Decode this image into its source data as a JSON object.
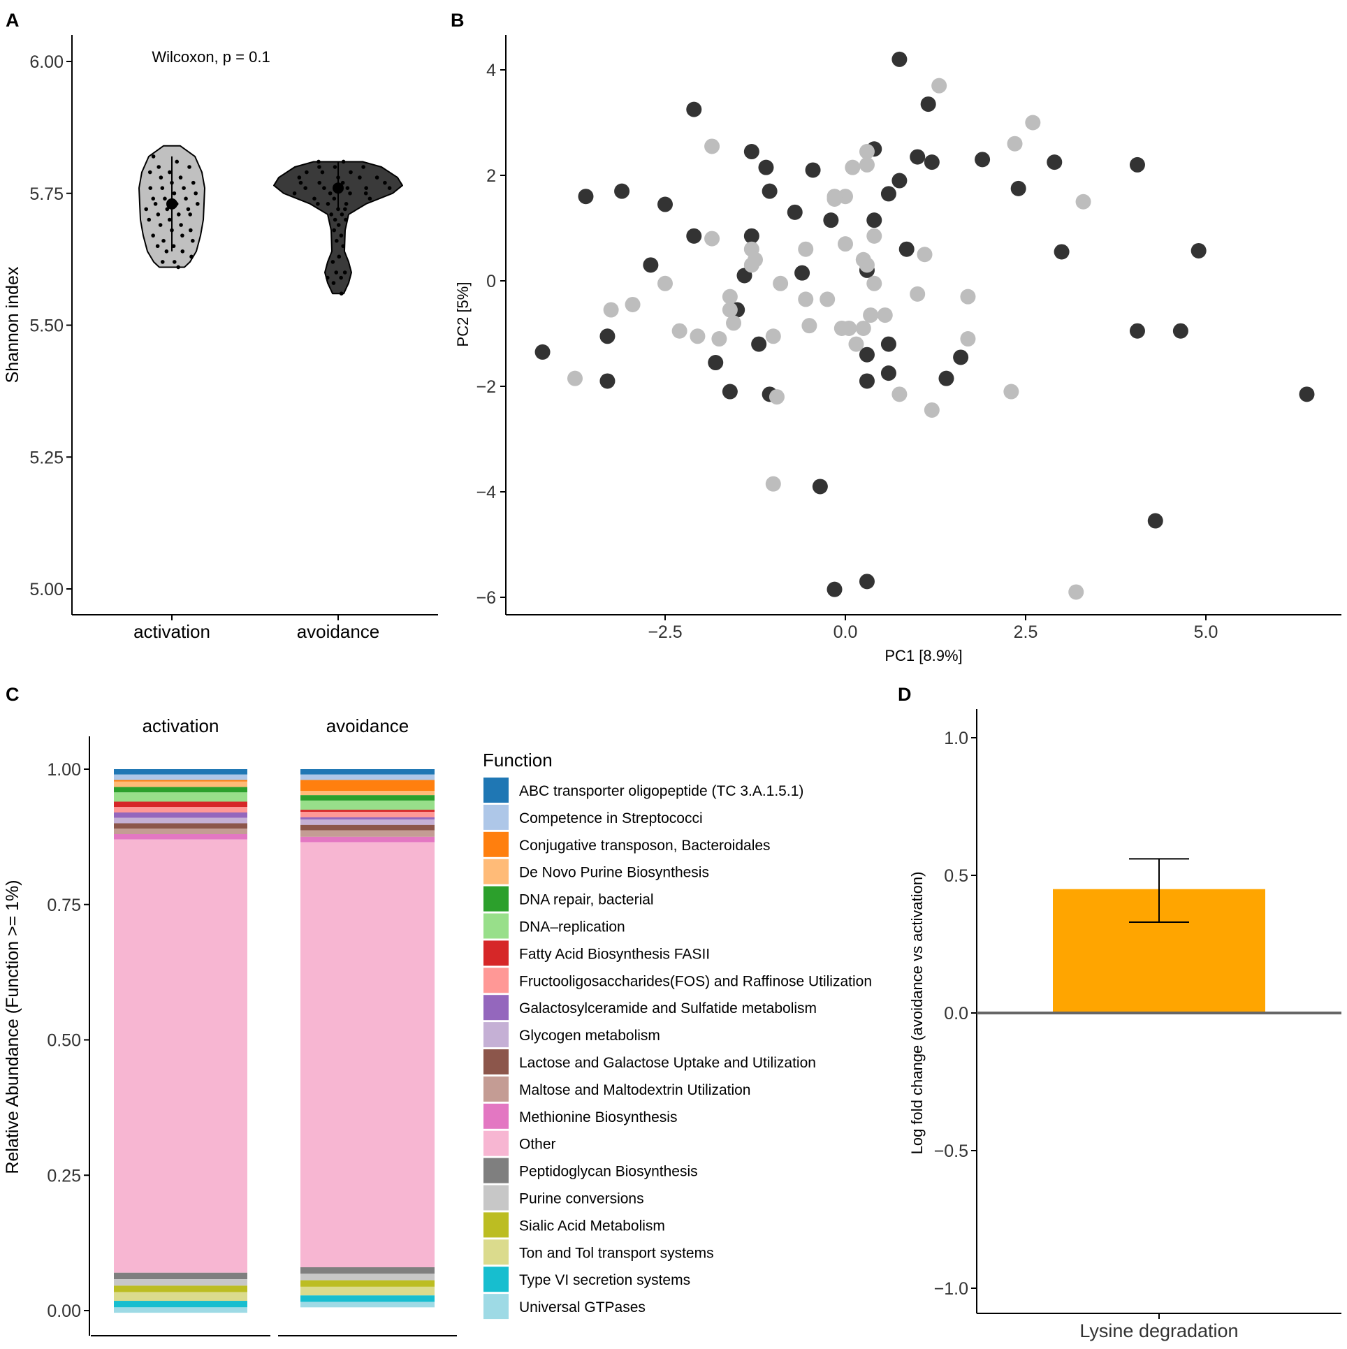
{
  "chart_data": [
    {
      "panel": "A",
      "type": "violin",
      "annotation": "Wilcoxon, p = 0.1",
      "ylabel": "Shannon index",
      "xlabel": "",
      "ylim": [
        4.95,
        6.05
      ],
      "yticks": [
        5.0,
        5.25,
        5.5,
        5.75,
        6.0
      ],
      "ytick_labels": [
        "5.00",
        "5.25",
        "5.50",
        "5.75",
        "6.00"
      ],
      "categories": [
        "activation",
        "avoidance"
      ],
      "groups": [
        {
          "name": "activation",
          "color": "#c0c0c0",
          "mean": 5.73,
          "sd_low": 5.64,
          "sd_high": 5.82,
          "range": [
            5.61,
            5.84
          ],
          "points": [
            5.82,
            5.81,
            5.8,
            5.8,
            5.79,
            5.79,
            5.78,
            5.78,
            5.77,
            5.77,
            5.76,
            5.76,
            5.76,
            5.75,
            5.75,
            5.74,
            5.74,
            5.74,
            5.73,
            5.73,
            5.73,
            5.72,
            5.72,
            5.72,
            5.71,
            5.71,
            5.71,
            5.7,
            5.7,
            5.69,
            5.69,
            5.68,
            5.68,
            5.67,
            5.67,
            5.66,
            5.66,
            5.65,
            5.65,
            5.64,
            5.64,
            5.63,
            5.62,
            5.62,
            5.61
          ]
        },
        {
          "name": "avoidance",
          "color": "#3a3a3a",
          "mean": 5.76,
          "sd_low": 5.72,
          "sd_high": 5.81,
          "range": [
            5.56,
            5.81
          ],
          "points": [
            5.81,
            5.81,
            5.8,
            5.8,
            5.8,
            5.79,
            5.79,
            5.79,
            5.78,
            5.78,
            5.78,
            5.78,
            5.77,
            5.77,
            5.77,
            5.77,
            5.76,
            5.76,
            5.76,
            5.76,
            5.76,
            5.75,
            5.75,
            5.75,
            5.75,
            5.74,
            5.74,
            5.74,
            5.73,
            5.73,
            5.73,
            5.72,
            5.72,
            5.71,
            5.71,
            5.7,
            5.7,
            5.69,
            5.68,
            5.67,
            5.66,
            5.65,
            5.63,
            5.62,
            5.6,
            5.6,
            5.59,
            5.59,
            5.58,
            5.56
          ]
        }
      ]
    },
    {
      "panel": "B",
      "type": "scatter",
      "xlabel": "PC1   [8.9%]",
      "ylabel": "PC2   [5%]",
      "xlim": [
        -4.8,
        6.8
      ],
      "ylim": [
        -6.4,
        4.7
      ],
      "xticks": [
        -2.5,
        0.0,
        2.5,
        5.0
      ],
      "xtick_labels": [
        "−2.5",
        "0.0",
        "2.5",
        "5.0"
      ],
      "yticks": [
        -6,
        -4,
        -2,
        0,
        2,
        4
      ],
      "ytick_labels": [
        "−6",
        "−4",
        "−2",
        "0",
        "2",
        "4"
      ],
      "series": [
        {
          "name": "dark",
          "color": "#333333",
          "points": [
            [
              0.75,
              4.2
            ],
            [
              -2.1,
              3.25
            ],
            [
              1.15,
              3.35
            ],
            [
              0.4,
              2.5
            ],
            [
              -1.3,
              2.45
            ],
            [
              1.0,
              2.35
            ],
            [
              1.2,
              2.25
            ],
            [
              1.9,
              2.3
            ],
            [
              2.9,
              2.25
            ],
            [
              4.05,
              2.2
            ],
            [
              -1.1,
              2.15
            ],
            [
              -0.45,
              2.1
            ],
            [
              0.75,
              1.9
            ],
            [
              -1.05,
              1.7
            ],
            [
              -3.1,
              1.7
            ],
            [
              0.6,
              1.65
            ],
            [
              2.4,
              1.75
            ],
            [
              -3.6,
              1.6
            ],
            [
              -2.5,
              1.45
            ],
            [
              -0.7,
              1.3
            ],
            [
              -0.2,
              1.15
            ],
            [
              0.4,
              1.15
            ],
            [
              -2.1,
              0.85
            ],
            [
              -1.3,
              0.85
            ],
            [
              0.85,
              0.6
            ],
            [
              3.0,
              0.55
            ],
            [
              4.9,
              0.57
            ],
            [
              -2.7,
              0.3
            ],
            [
              -1.4,
              0.1
            ],
            [
              -0.6,
              0.15
            ],
            [
              0.3,
              0.2
            ],
            [
              -1.5,
              -0.55
            ],
            [
              4.05,
              -0.95
            ],
            [
              4.65,
              -0.95
            ],
            [
              -3.3,
              -1.05
            ],
            [
              -1.2,
              -1.2
            ],
            [
              0.6,
              -1.2
            ],
            [
              0.3,
              -1.4
            ],
            [
              1.6,
              -1.45
            ],
            [
              -4.2,
              -1.35
            ],
            [
              -1.8,
              -1.55
            ],
            [
              0.6,
              -1.75
            ],
            [
              1.4,
              -1.85
            ],
            [
              -3.3,
              -1.9
            ],
            [
              0.3,
              -1.9
            ],
            [
              -1.6,
              -2.1
            ],
            [
              -1.05,
              -2.15
            ],
            [
              6.4,
              -2.15
            ],
            [
              -0.35,
              -3.9
            ],
            [
              4.3,
              -4.55
            ],
            [
              -0.15,
              -5.85
            ],
            [
              0.3,
              -5.7
            ]
          ]
        },
        {
          "name": "light",
          "color": "#bdbdbd",
          "points": [
            [
              1.3,
              3.7
            ],
            [
              2.6,
              3.0
            ],
            [
              2.35,
              2.6
            ],
            [
              -1.85,
              2.55
            ],
            [
              0.3,
              2.45
            ],
            [
              0.3,
              2.2
            ],
            [
              0.1,
              2.15
            ],
            [
              -0.15,
              1.6
            ],
            [
              0.0,
              1.6
            ],
            [
              -0.15,
              1.55
            ],
            [
              3.3,
              1.5
            ],
            [
              0.4,
              0.85
            ],
            [
              -1.85,
              0.8
            ],
            [
              0.0,
              0.7
            ],
            [
              -1.3,
              0.6
            ],
            [
              -0.55,
              0.6
            ],
            [
              1.1,
              0.5
            ],
            [
              -1.25,
              0.4
            ],
            [
              0.25,
              0.4
            ],
            [
              -1.3,
              0.3
            ],
            [
              0.3,
              0.3
            ],
            [
              -2.5,
              -0.05
            ],
            [
              -0.9,
              -0.05
            ],
            [
              0.4,
              -0.05
            ],
            [
              -1.6,
              -0.3
            ],
            [
              1.7,
              -0.3
            ],
            [
              -0.55,
              -0.35
            ],
            [
              -0.25,
              -0.35
            ],
            [
              1.0,
              -0.25
            ],
            [
              -3.25,
              -0.55
            ],
            [
              -2.95,
              -0.45
            ],
            [
              -1.6,
              -0.55
            ],
            [
              0.35,
              -0.65
            ],
            [
              0.55,
              -0.65
            ],
            [
              -1.55,
              -0.8
            ],
            [
              -0.5,
              -0.85
            ],
            [
              0.05,
              -0.9
            ],
            [
              -0.05,
              -0.9
            ],
            [
              0.25,
              -0.9
            ],
            [
              -2.3,
              -0.95
            ],
            [
              -2.05,
              -1.05
            ],
            [
              -1.75,
              -1.1
            ],
            [
              -1.0,
              -1.05
            ],
            [
              1.7,
              -1.1
            ],
            [
              0.15,
              -1.2
            ],
            [
              -3.75,
              -1.85
            ],
            [
              2.3,
              -2.1
            ],
            [
              0.75,
              -2.15
            ],
            [
              -0.95,
              -2.2
            ],
            [
              1.2,
              -2.45
            ],
            [
              -1.0,
              -3.85
            ],
            [
              3.2,
              -5.9
            ]
          ]
        }
      ]
    },
    {
      "panel": "C",
      "type": "stacked-bar",
      "ylabel": "Relative Abundance (Function >= 1%)",
      "legend_title": "Function",
      "ylim": [
        0,
        1
      ],
      "yticks": [
        0.0,
        0.25,
        0.5,
        0.75,
        1.0
      ],
      "ytick_labels": [
        "0.00",
        "0.25",
        "0.50",
        "0.75",
        "1.00"
      ],
      "categories": [
        "activation",
        "avoidance"
      ],
      "series": [
        {
          "name": "ABC transporter oligopeptide (TC 3.A.1.5.1)",
          "color": "#1f77b4",
          "values": [
            0.01,
            0.01
          ]
        },
        {
          "name": "Competence in Streptococci",
          "color": "#aec7e8",
          "values": [
            0.01,
            0.01
          ]
        },
        {
          "name": "Conjugative transposon, Bacteroidales",
          "color": "#ff7f0e",
          "values": [
            0.003,
            0.02
          ]
        },
        {
          "name": "De Novo Purine Biosynthesis",
          "color": "#ffbb78",
          "values": [
            0.01,
            0.008
          ]
        },
        {
          "name": "DNA repair, bacterial",
          "color": "#2ca02c",
          "values": [
            0.01,
            0.01
          ]
        },
        {
          "name": "DNA–replication",
          "color": "#98df8a",
          "values": [
            0.017,
            0.017
          ]
        },
        {
          "name": "Fatty Acid Biosynthesis FASII",
          "color": "#d62728",
          "values": [
            0.01,
            0.004
          ]
        },
        {
          "name": "Fructooligosaccharides(FOS) and Raffinose Utilization",
          "color": "#ff9896",
          "values": [
            0.01,
            0.01
          ]
        },
        {
          "name": "Galactosylceramide and Sulfatide metabolism",
          "color": "#9467bd",
          "values": [
            0.01,
            0.004
          ]
        },
        {
          "name": "Glycogen metabolism",
          "color": "#c5b0d5",
          "values": [
            0.01,
            0.01
          ]
        },
        {
          "name": "Lactose and Galactose Uptake and Utilization",
          "color": "#8c564b",
          "values": [
            0.01,
            0.01
          ]
        },
        {
          "name": "Maltose and Maltodextrin Utilization",
          "color": "#c49c94",
          "values": [
            0.01,
            0.012
          ]
        },
        {
          "name": "Methionine Biosynthesis",
          "color": "#e377c2",
          "values": [
            0.01,
            0.01
          ]
        },
        {
          "name": "Other",
          "color": "#f7b6d2",
          "values": [
            0.8,
            0.785
          ]
        },
        {
          "name": "Peptidoglycan Biosynthesis",
          "color": "#7f7f7f",
          "values": [
            0.012,
            0.012
          ]
        },
        {
          "name": "Purine conversions",
          "color": "#c7c7c7",
          "values": [
            0.012,
            0.012
          ]
        },
        {
          "name": "Sialic Acid Metabolism",
          "color": "#bcbd22",
          "values": [
            0.012,
            0.012
          ]
        },
        {
          "name": "Ton and Tol transport systems",
          "color": "#dbdb8d",
          "values": [
            0.016,
            0.016
          ]
        },
        {
          "name": "Type VI secretion systems",
          "color": "#17becf",
          "values": [
            0.012,
            0.012
          ]
        },
        {
          "name": "Universal GTPases",
          "color": "#9edae5",
          "values": [
            0.01,
            0.01
          ]
        }
      ]
    },
    {
      "panel": "D",
      "type": "bar",
      "ylabel": "Log fold change (avoidance vs activation)",
      "categories": [
        "Lysine degradation"
      ],
      "values": [
        0.45
      ],
      "error": [
        [
          0.33,
          0.56
        ]
      ],
      "color": "#ffa500",
      "ylim": [
        -1.1,
        1.1
      ],
      "yticks": [
        -1.0,
        -0.5,
        0.0,
        0.5,
        1.0
      ],
      "ytick_labels": [
        "−1.0",
        "−0.5",
        "0.0",
        "0.5",
        "1.0"
      ]
    }
  ]
}
